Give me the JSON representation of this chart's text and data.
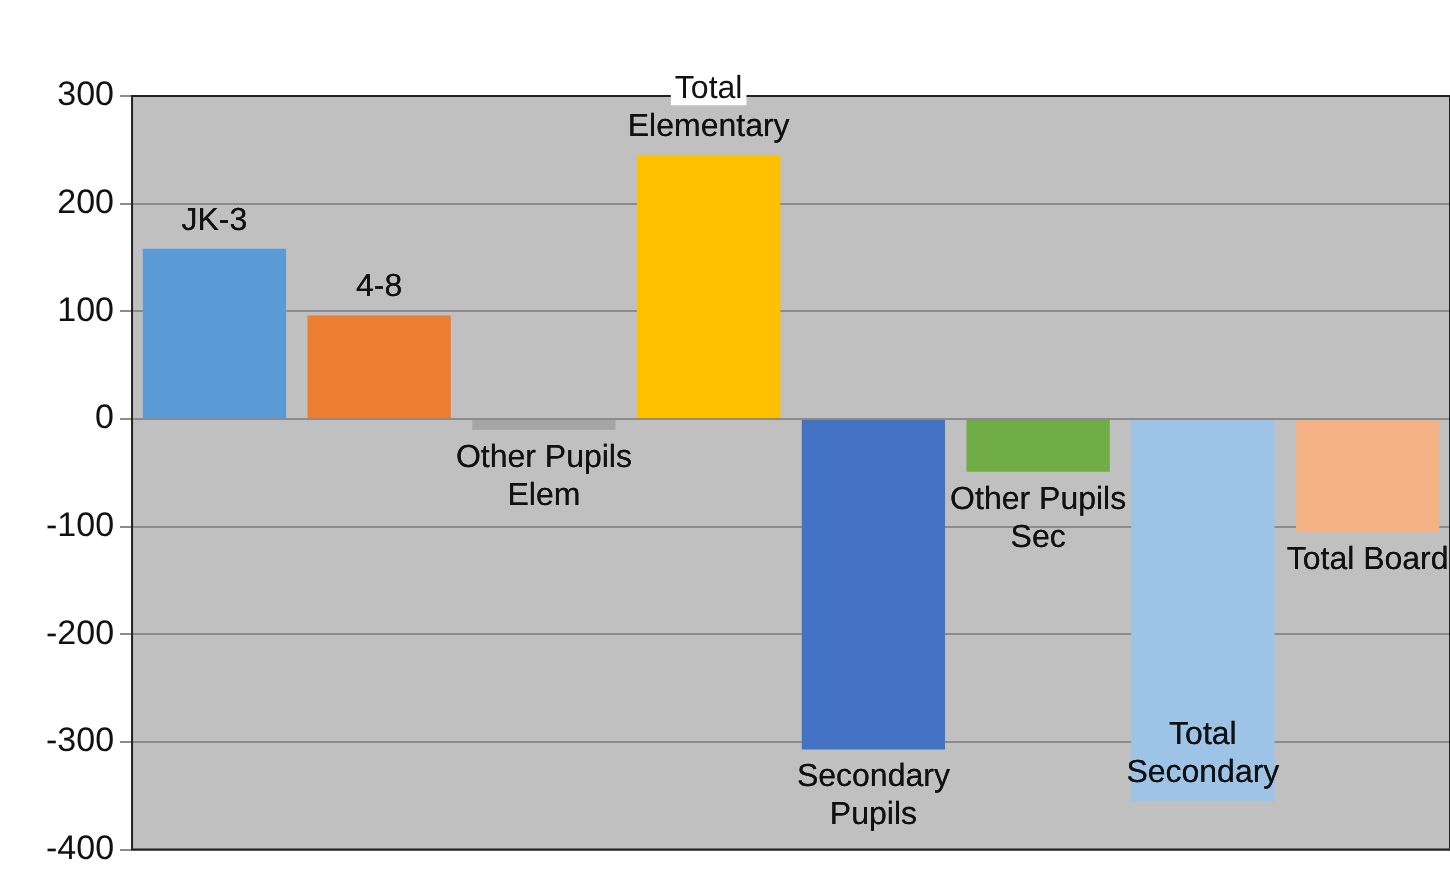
{
  "chart_data": {
    "type": "bar",
    "categories": [
      "JK-3",
      "4-8",
      "Other Pupils Elem",
      "Total Elementary",
      "Secondary Pupils",
      "Other Pupils Sec",
      "Total Secondary",
      "Total Board"
    ],
    "values": [
      158,
      96,
      -10,
      245,
      -307,
      -49,
      -355,
      -105
    ],
    "colors": [
      "#5b9bd5",
      "#ed7d31",
      "#a5a5a5",
      "#ffc000",
      "#4472c4",
      "#70ad47",
      "#9dc3e6",
      "#f4b183"
    ],
    "ylim": [
      -400,
      300
    ],
    "yticks": [
      -400,
      -300,
      -200,
      -100,
      0,
      100,
      200,
      300
    ],
    "grid": "y",
    "tick_labels": "y",
    "legend": false
  }
}
